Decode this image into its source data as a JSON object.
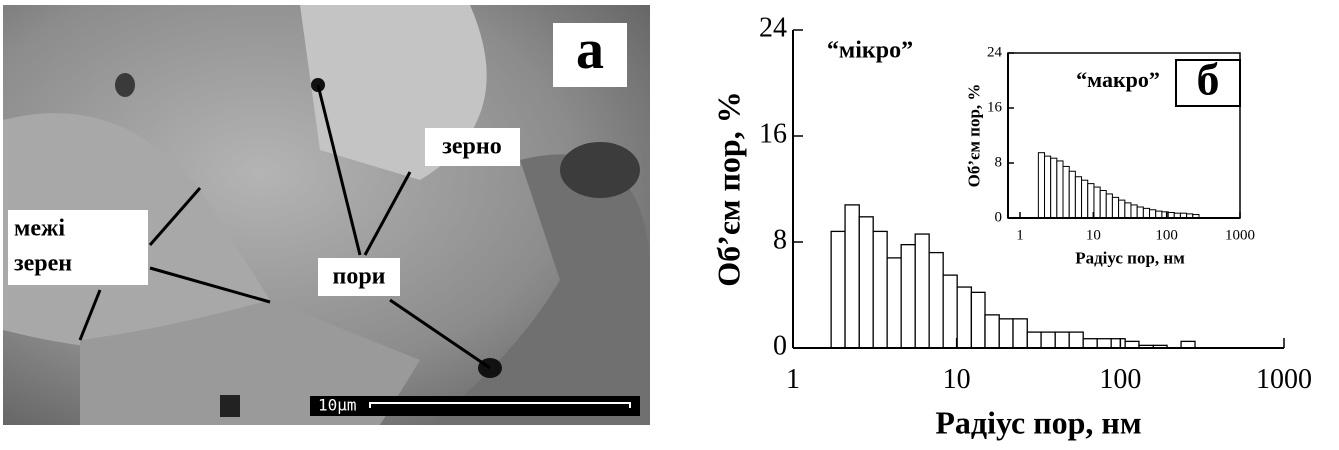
{
  "image_panel": {
    "panel_label": "а",
    "grain": "зерно",
    "grain_boundaries": [
      "межі",
      "зерен"
    ],
    "pores": "пори",
    "scale_bar": "10μm"
  },
  "chart_data": [
    {
      "type": "histogram",
      "panel_label": "б",
      "annotation": "“мікро”",
      "xlabel": "Радіус пор, нм",
      "ylabel": "Об’єм пор, %",
      "log_x": true,
      "xlim": [
        1,
        1000
      ],
      "xticks": [
        1,
        10,
        100,
        1000
      ],
      "ylim": [
        0,
        24
      ],
      "yticks": [
        0,
        8,
        16,
        24
      ],
      "color": "#ffffff",
      "bins": [
        1.71,
        2.08,
        2.54,
        3.09,
        3.76,
        4.58,
        5.58,
        6.79,
        8.27,
        10.07,
        12.3,
        14.9,
        18.2,
        22.1,
        27.0,
        32.8,
        40.0,
        48.7,
        59.3,
        72.2,
        87.9,
        107,
        130,
        159,
        193,
        235,
        286
      ],
      "values": [
        8.8,
        10.8,
        9.9,
        8.8,
        6.8,
        7.8,
        8.6,
        7.2,
        5.5,
        4.6,
        4.2,
        2.5,
        2.2,
        2.2,
        1.2,
        1.2,
        1.2,
        1.2,
        0.7,
        0.7,
        0.7,
        0.5,
        0.2,
        0.2,
        0,
        0.5
      ]
    },
    {
      "type": "histogram",
      "annotation": "“макро”",
      "xlabel": "Радіус пор, нм",
      "ylabel": "Об’єм пор, %",
      "log_x": true,
      "xlim": [
        1,
        1000
      ],
      "xticks": [
        1,
        10,
        100,
        1000
      ],
      "ylim": [
        0,
        24
      ],
      "yticks": [
        0,
        8,
        16,
        24
      ],
      "color": "#ffffff",
      "bins": [
        1.78,
        2.16,
        2.62,
        3.18,
        3.86,
        4.69,
        5.69,
        6.91,
        8.39,
        10.2,
        12.4,
        15.0,
        18.2,
        22.1,
        26.9,
        32.6,
        39.6,
        48.1,
        58.4,
        70.9,
        86.1,
        105,
        127,
        154,
        187,
        227,
        276
      ],
      "values": [
        9.5,
        9.0,
        8.7,
        8.3,
        7.5,
        6.8,
        6.0,
        5.5,
        5.0,
        4.5,
        4.0,
        3.5,
        3.0,
        2.6,
        2.2,
        1.9,
        1.6,
        1.4,
        1.2,
        1.0,
        0.9,
        0.8,
        0.7,
        0.7,
        0.6,
        0.5
      ]
    }
  ]
}
